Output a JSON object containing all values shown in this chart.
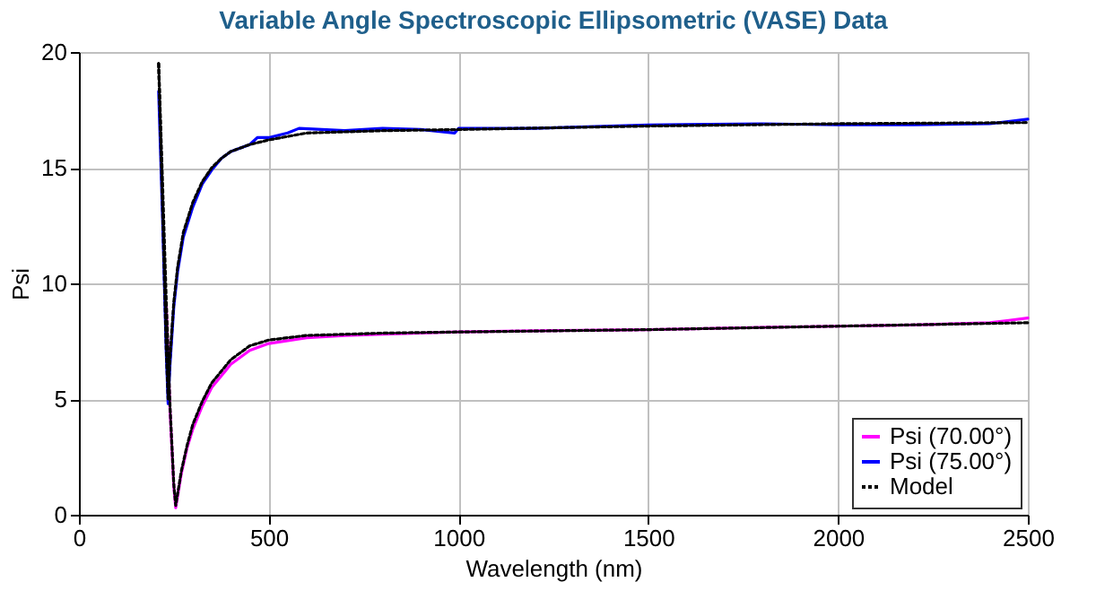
{
  "chart_data": {
    "type": "line",
    "title": "Variable Angle Spectroscopic Ellipsometric (VASE) Data",
    "xlabel": "Wavelength (nm)",
    "ylabel": "Psi",
    "xlim": [
      0,
      2500
    ],
    "xticks": [
      0,
      500,
      1000,
      1500,
      2000,
      2500
    ],
    "ylim": [
      0,
      20
    ],
    "yticks": [
      0,
      5,
      10,
      15,
      20
    ],
    "grid": true,
    "legend": "bottom right",
    "marker": "none",
    "series": [
      {
        "name": "Psi (70.00°)",
        "color": "#ff00ff",
        "line_style": "solid",
        "x": [
          230,
          240,
          250,
          255,
          260,
          270,
          285,
          300,
          325,
          350,
          400,
          450,
          500,
          600,
          700,
          800,
          1000,
          1200,
          1500,
          1800,
          2000,
          2200,
          2400,
          2450,
          2500
        ],
        "values": [
          9.0,
          4.5,
          1.2,
          0.3,
          0.8,
          1.8,
          2.9,
          3.7,
          4.7,
          5.5,
          6.5,
          7.1,
          7.4,
          7.65,
          7.75,
          7.8,
          7.9,
          7.95,
          8.0,
          8.1,
          8.15,
          8.2,
          8.3,
          8.4,
          8.5
        ]
      },
      {
        "name": "Psi (75.00°)",
        "color": "#0000ff",
        "line_style": "solid",
        "x": [
          210,
          220,
          230,
          235,
          240,
          250,
          260,
          275,
          300,
          325,
          350,
          375,
          400,
          450,
          470,
          500,
          550,
          580,
          700,
          800,
          900,
          990,
          1000,
          1200,
          1500,
          1800,
          2000,
          2200,
          2400,
          2500
        ],
        "values": [
          18.3,
          13.0,
          7.0,
          4.8,
          6.5,
          9.0,
          10.5,
          12.0,
          13.3,
          14.3,
          14.9,
          15.4,
          15.7,
          16.0,
          16.3,
          16.3,
          16.5,
          16.7,
          16.6,
          16.7,
          16.65,
          16.5,
          16.7,
          16.7,
          16.85,
          16.9,
          16.85,
          16.85,
          16.9,
          17.1
        ]
      },
      {
        "name": "Model",
        "color": "#000000",
        "line_style": "dotted",
        "x": [
          210,
          220,
          230,
          240,
          250,
          255,
          260,
          270,
          285,
          300,
          325,
          350,
          400,
          450,
          500,
          600,
          700,
          800,
          1000,
          1500,
          2000,
          2500
        ],
        "values": [
          19.5,
          14.5,
          9.3,
          4.7,
          1.3,
          0.4,
          0.9,
          1.9,
          3.0,
          3.9,
          4.9,
          5.7,
          6.7,
          7.3,
          7.55,
          7.75,
          7.8,
          7.85,
          7.9,
          8.0,
          8.15,
          8.3
        ]
      },
      {
        "color": "#000000",
        "line_style": "dotted",
        "x": [
          210,
          220,
          230,
          235,
          240,
          250,
          260,
          275,
          300,
          325,
          350,
          375,
          400,
          450,
          500,
          600,
          800,
          1000,
          1500,
          2000,
          2500
        ],
        "values": [
          19.5,
          13.5,
          7.2,
          5.0,
          6.8,
          9.2,
          10.7,
          12.2,
          13.5,
          14.4,
          15.0,
          15.4,
          15.7,
          16.0,
          16.2,
          16.5,
          16.6,
          16.65,
          16.8,
          16.9,
          16.95
        ]
      }
    ]
  }
}
